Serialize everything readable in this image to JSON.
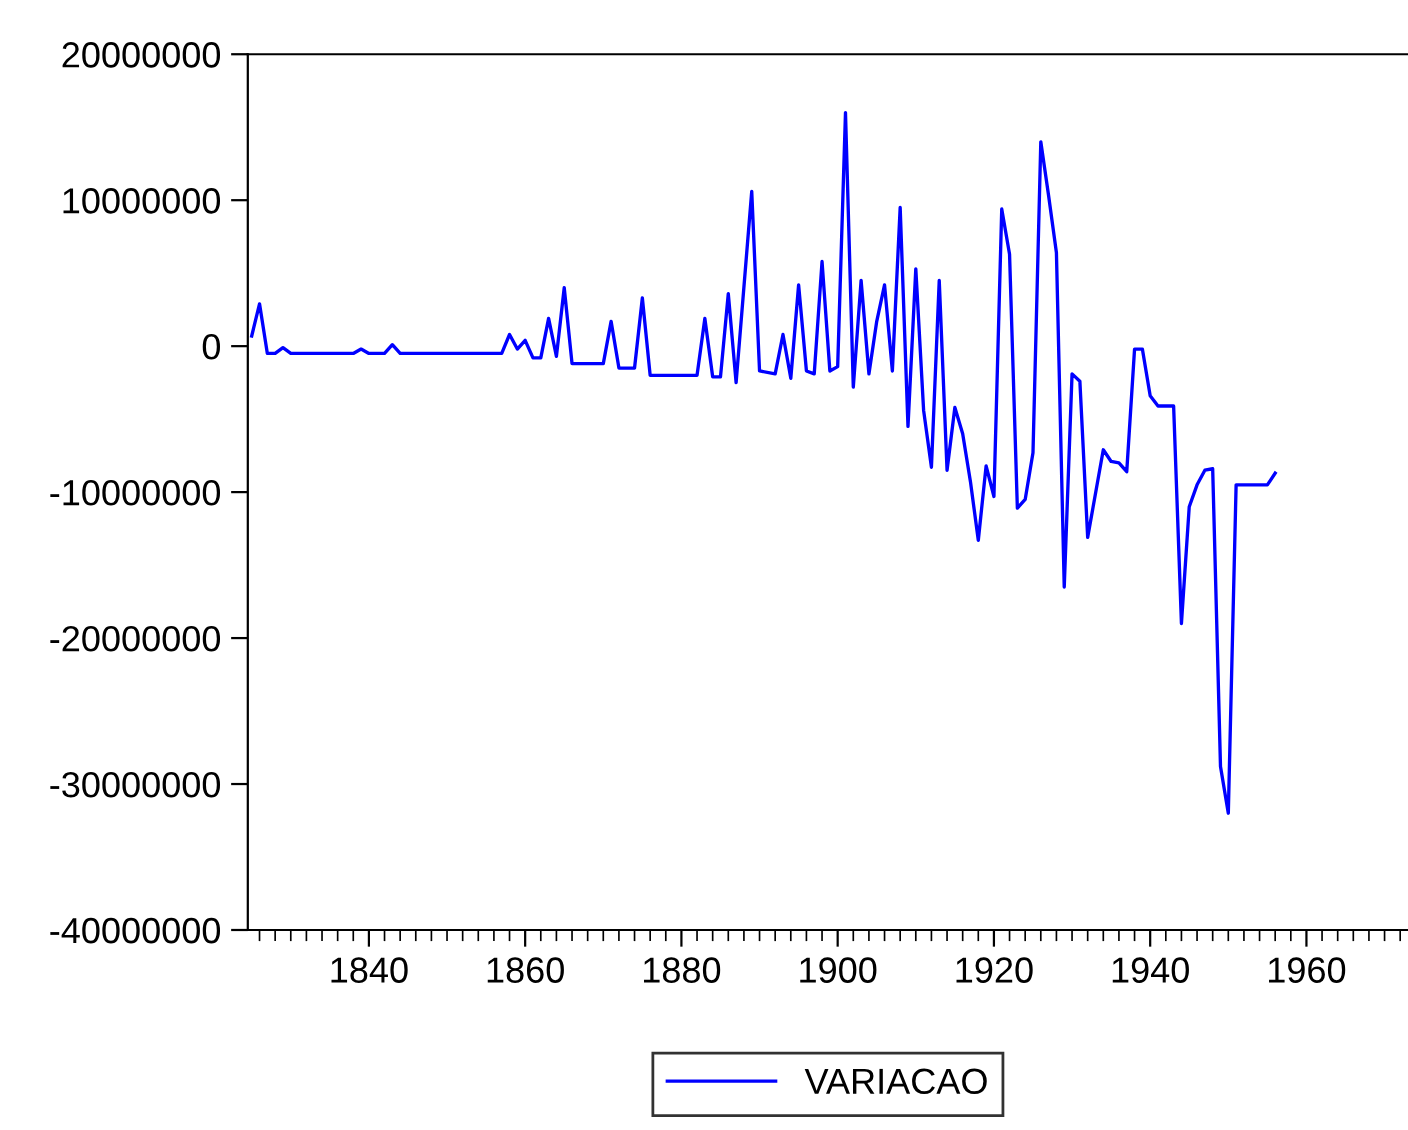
{
  "chart_data": {
    "type": "line",
    "x": [
      1825,
      1826,
      1827,
      1828,
      1829,
      1830,
      1838,
      1839,
      1840,
      1842,
      1843,
      1844,
      1852,
      1857,
      1858,
      1859,
      1860,
      1861,
      1862,
      1863,
      1864,
      1865,
      1866,
      1870,
      1871,
      1872,
      1874,
      1875,
      1876,
      1882,
      1883,
      1884,
      1885,
      1886,
      1887,
      1889,
      1890,
      1892,
      1893,
      1894,
      1895,
      1896,
      1897,
      1898,
      1899,
      1900,
      1901,
      1902,
      1903,
      1904,
      1905,
      1906,
      1907,
      1908,
      1909,
      1910,
      1911,
      1912,
      1913,
      1914,
      1915,
      1916,
      1917,
      1918,
      1919,
      1920,
      1921,
      1922,
      1923,
      1924,
      1925,
      1926,
      1927,
      1928,
      1929,
      1930,
      1931,
      1932,
      1934,
      1935,
      1936,
      1937,
      1938,
      1939,
      1940,
      1941,
      1943,
      1944,
      1945,
      1946,
      1947,
      1948,
      1949,
      1950,
      1951,
      1955,
      1956
    ],
    "series": [
      {
        "name": "VARIACAO",
        "color": "#0000ff",
        "values": [
          700000,
          2900000,
          -500000,
          -500000,
          -100000,
          -500000,
          -500000,
          -200000,
          -500000,
          -500000,
          100000,
          -500000,
          -500000,
          -500000,
          800000,
          -200000,
          400000,
          -800000,
          -800000,
          1900000,
          -700000,
          4000000,
          -1200000,
          -1200000,
          1700000,
          -1500000,
          -1500000,
          3300000,
          -2000000,
          -2000000,
          1900000,
          -2100000,
          -2100000,
          3600000,
          -2500000,
          10600000,
          -1700000,
          -1900000,
          800000,
          -2200000,
          4200000,
          -1700000,
          -1900000,
          5800000,
          -1700000,
          -1400000,
          16000000,
          -2800000,
          4500000,
          -1900000,
          1700000,
          4200000,
          -1700000,
          9500000,
          -5500000,
          5300000,
          -4400000,
          -8300000,
          4500000,
          -8500000,
          -4200000,
          -6000000,
          -9300000,
          -13300000,
          -8200000,
          -10300000,
          9400000,
          6300000,
          -11100000,
          -10500000,
          -7300000,
          14000000,
          10300000,
          6400000,
          -16500000,
          -1900000,
          -2400000,
          -13100000,
          -7100000,
          -7900000,
          -8000000,
          -8600000,
          -200000,
          -200000,
          -3400000,
          -4100000,
          -4100000,
          -19000000,
          -11000000,
          -9500000,
          -8500000,
          -8400000,
          -28800000,
          -32000000,
          -9500000,
          -9500000,
          -8700000
        ]
      }
    ],
    "xlim": [
      1824.5,
      1973
    ],
    "xticks": [
      1840,
      1860,
      1880,
      1900,
      1920,
      1940,
      1960
    ],
    "ylim": [
      -40000000,
      20000000
    ],
    "yticks": [
      -40000000,
      -30000000,
      -20000000,
      -10000000,
      0,
      10000000,
      20000000
    ],
    "grid": false,
    "legend": "bottom",
    "marker": "none",
    "line_style": "solid"
  }
}
